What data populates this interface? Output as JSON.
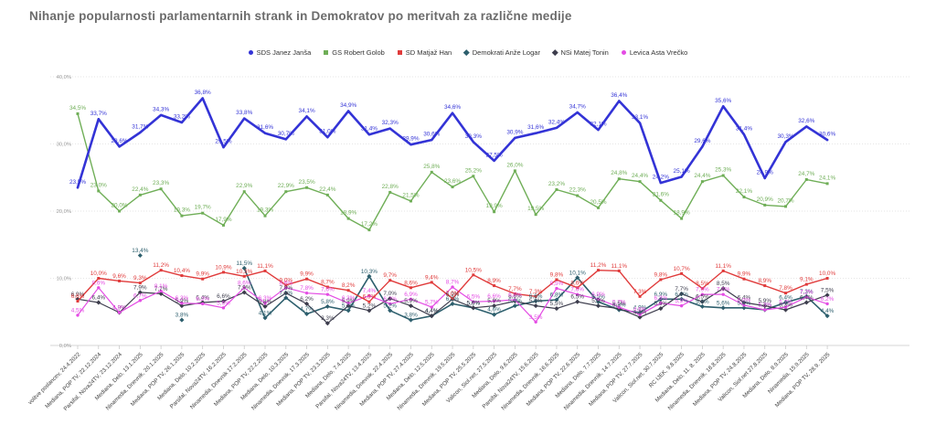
{
  "title": "Nihanje popularnosti parlamentarnih strank in Demokratov po meritvah za različne medije",
  "chart_data": {
    "type": "line",
    "title": "Nihanje popularnosti parlamentarnih strank in Demokratov po meritvah za različne medije",
    "ylim": [
      0,
      40
    ],
    "y_tick_labels": [
      "0,0%",
      "10,0%",
      "20,0%",
      "30,0%",
      "40,0%"
    ],
    "grid": true,
    "legend_position": "top",
    "categories": [
      "volitve poslancev, 24.4.2022",
      "Mediana, POP TV, 22.12.2024",
      "Parsifal, Nova24TV, 23.12.2024",
      "Mediana, Delo, 13.1.2025",
      "Ninamedia, Dnevnik, 20.1.2025",
      "Mediana, POP TV, 26.1.2025",
      "Mediana, Delo, 10.2.2025",
      "Parsifal, Nova24TV, 16.2.2025",
      "Ninamedia, Dnevnik 17.2.2025",
      "Mediana, POP TV, 22.2.2025",
      "Mediana, Delo, 10.3.2025",
      "Ninamedia, Dnevnik, 17.3.2025",
      "Mediana, POP TV, 23.3.2025",
      "Mediana, Delo, 7.4.2025",
      "Parsifal, Nova24TV, 13.4.2025",
      "Ninamedia, Dnevnik, 22.4.2025",
      "Mediana, POP TV, 27.4.2025",
      "Mediana, Delo, 12.5.2025",
      "Ninamedia, Dnevnik, 19.5.2025",
      "Mediana, POP TV, 25.5.2025",
      "Valicon, Siol.net, 27.5.2025",
      "Mediana, Delo, 9.6.2025",
      "Parsifal, Nova24TV, 15.6.2025",
      "Ninamedia, Dnevnik, 16.6.2025",
      "Mediana, POP TV, 22.6.2025",
      "Mediana, Delo, 7.7.2025",
      "Ninamedia, Dnevnik, 14.7.2025",
      "Mediana, POP TV, 27.7.2025",
      "Valicon, Siol.net, 30.7.2025",
      "RC IJEK, 9.8.2025",
      "Mediana, Delo, 11. 8. 2025",
      "Ninamedia, Dnevnik, 18.8.2025",
      "Mediana, POP TV, 24.8.2025",
      "Valicon, Siol.net 27.8.2025",
      "Mediana, Delo, 8.9.2025",
      "Ninamedia, 15.9.2025",
      "Mediana, POP TV, 28.9. 2025"
    ],
    "series": [
      {
        "name": "SDS Janez Janša",
        "color": "#3333d6",
        "marker": "circle",
        "line_width": 2.6,
        "values": [
          23.5,
          33.7,
          29.6,
          31.7,
          34.3,
          33.2,
          36.8,
          29.5,
          33.8,
          31.6,
          30.7,
          34.1,
          31.0,
          34.9,
          31.4,
          32.3,
          29.9,
          30.6,
          34.6,
          30.3,
          27.5,
          30.9,
          31.6,
          32.4,
          34.7,
          32.1,
          36.4,
          33.1,
          24.2,
          25.1,
          29.6,
          35.6,
          31.4,
          24.9,
          30.3,
          32.6,
          30.6
        ]
      },
      {
        "name": "GS Robert Golob",
        "color": "#6fae57",
        "marker": "square",
        "line_width": 1.4,
        "values": [
          34.5,
          23.0,
          20.0,
          22.4,
          23.3,
          19.3,
          19.7,
          17.9,
          22.9,
          19.3,
          22.9,
          23.5,
          22.4,
          18.9,
          17.2,
          22.8,
          21.5,
          25.8,
          23.6,
          25.2,
          19.9,
          26.0,
          19.5,
          23.2,
          22.3,
          20.5,
          24.8,
          24.4,
          21.6,
          18.9,
          24.4,
          25.3,
          22.1,
          20.9,
          20.7,
          24.7,
          24.1
        ]
      },
      {
        "name": "SD Matjaž Han",
        "color": "#e03b3b",
        "marker": "square",
        "line_width": 1.4,
        "values": [
          6.6,
          10.0,
          9.6,
          9.3,
          11.2,
          10.4,
          9.9,
          10.9,
          10.3,
          11.1,
          9.0,
          9.9,
          8.7,
          8.2,
          6.5,
          9.7,
          8.6,
          9.4,
          7.0,
          10.5,
          8.9,
          7.7,
          7.3,
          9.8,
          8.6,
          11.2,
          11.1,
          7.3,
          9.8,
          10.7,
          8.5,
          11.1,
          9.9,
          8.9,
          7.8,
          9.1,
          10.0
        ]
      },
      {
        "name": "Demokrati Anže Logar",
        "color": "#2d5f6d",
        "marker": "diamond",
        "line_width": 1.6,
        "values": [
          null,
          null,
          null,
          13.4,
          null,
          3.8,
          null,
          null,
          11.5,
          4.1,
          7.1,
          4.7,
          5.8,
          5.2,
          10.3,
          5.2,
          3.8,
          4.4,
          6.2,
          5.6,
          4.6,
          5.9,
          6.6,
          6.8,
          10.1,
          6.5,
          5.3,
          4.9,
          6.9,
          6.9,
          5.8,
          5.6,
          5.6,
          5.3,
          6.4,
          7.3,
          4.4
        ]
      },
      {
        "name": "NSi Matej Tonin",
        "color": "#3d3d4d",
        "marker": "diamond",
        "line_width": 1.2,
        "values": [
          6.9,
          6.4,
          4.9,
          7.9,
          7.7,
          5.9,
          6.4,
          6.6,
          7.9,
          5.8,
          7.8,
          6.2,
          3.3,
          5.9,
          5.2,
          7.0,
          5.9,
          4.4,
          6.9,
          5.6,
          5.9,
          6.6,
          5.9,
          5.5,
          6.5,
          5.9,
          5.5,
          4.2,
          5.5,
          7.7,
          6.5,
          8.5,
          6.4,
          5.9,
          5.3,
          6.4,
          7.5
        ]
      },
      {
        "name": "Levica Asta Vrečko",
        "color": "#e44ce4",
        "marker": "circle",
        "line_width": 1.2,
        "values": [
          4.5,
          8.6,
          4.9,
          6.7,
          8.1,
          6.3,
          6.2,
          5.6,
          8.6,
          6.3,
          8.6,
          7.8,
          7.6,
          6.3,
          7.4,
          6.2,
          6.9,
          5.7,
          8.7,
          6.5,
          6.6,
          6.8,
          3.5,
          8.5,
          7.6,
          6.9,
          5.7,
          4.6,
          6.3,
          5.9,
          7.6,
          7.6,
          6.0,
          5.3,
          5.7,
          7.2,
          6.2
        ]
      }
    ]
  }
}
